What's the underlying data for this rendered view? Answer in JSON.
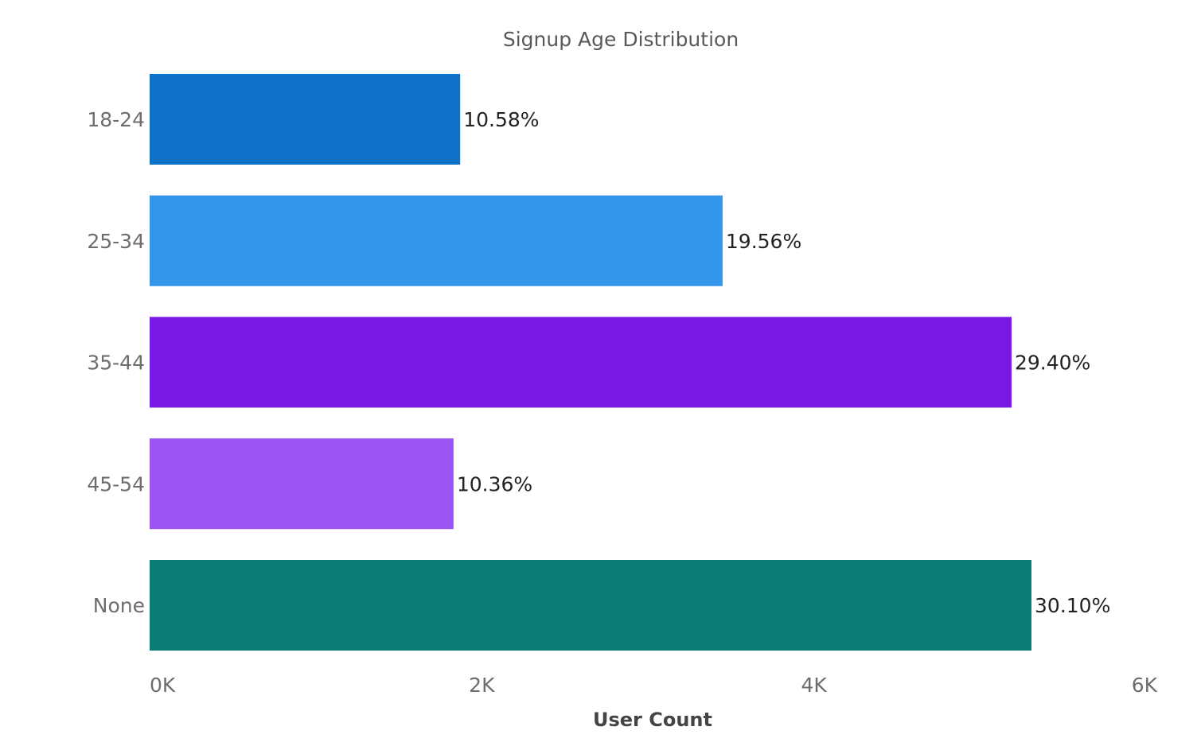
{
  "chart_data": {
    "type": "bar",
    "orientation": "horizontal",
    "title": "Signup Age Distribution",
    "xlabel": "User Count",
    "ylabel": "",
    "xlim": [
      0,
      6000
    ],
    "x_ticks": [
      0,
      2000,
      4000,
      6000
    ],
    "x_tick_labels": [
      "0K",
      "2K",
      "4K",
      "6K"
    ],
    "grid": false,
    "legend": "none",
    "categories": [
      "18-24",
      "25-34",
      "35-44",
      "45-54",
      "None"
    ],
    "values": [
      1870,
      3450,
      5190,
      1830,
      5310
    ],
    "data_labels": [
      "10.58%",
      "19.56%",
      "29.40%",
      "10.36%",
      "30.10%"
    ],
    "colors": [
      "#0f72c9",
      "#3496ea",
      "#7818e4",
      "#9b54f2",
      "#0a7c76"
    ]
  }
}
